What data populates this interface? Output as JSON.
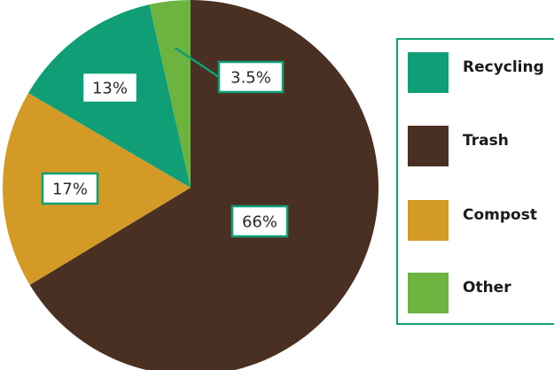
{
  "chart_data": {
    "type": "pie",
    "slices": [
      {
        "label": "Recycling",
        "value": 13,
        "display": "13%",
        "color": "#0f9e76"
      },
      {
        "label": "Trash",
        "value": 66,
        "display": "66%",
        "color": "#4a3022"
      },
      {
        "label": "Compost",
        "value": 17,
        "display": "17%",
        "color": "#d39a25"
      },
      {
        "label": "Other",
        "value": 3.5,
        "display": "3.5%",
        "color": "#6db33f"
      }
    ],
    "legend": {
      "placement": "right",
      "entries": [
        "Recycling",
        "Trash",
        "Compost",
        "Other"
      ]
    },
    "accent_color": "#0f9e76"
  }
}
